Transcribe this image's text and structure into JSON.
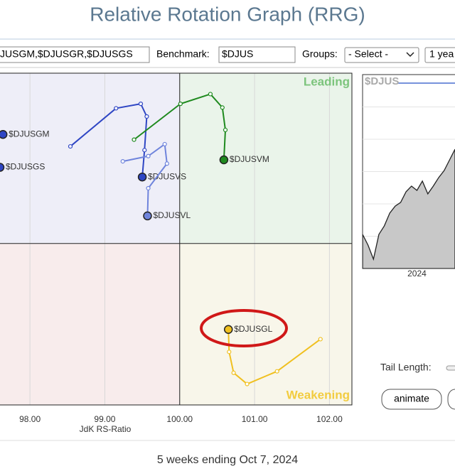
{
  "header": {
    "title": "Relative Rotation Graph (RRG)"
  },
  "controls": {
    "symbols": "JUSGM,$DJUSGR,$DJUSGS",
    "benchmark_label": "Benchmark:",
    "benchmark": "$DJUS",
    "groups_label": "Groups:",
    "groups": "- Select -",
    "period": "1 yea",
    "tail_label": "Tail Length:",
    "animate": "animate"
  },
  "footer": "5 weeks ending Oct 7, 2024",
  "chart_data": [
    {
      "type": "rrg",
      "xlabel": "JdK RS-Ratio",
      "xlim": [
        97.6,
        102.3
      ],
      "ylim": [
        97.84,
        102.28
      ],
      "center": 100,
      "xticks": [
        {
          "value": 98,
          "label": "98.00"
        },
        {
          "value": 99,
          "label": "99.00"
        },
        {
          "value": 100,
          "label": "100.00"
        },
        {
          "value": 101,
          "label": "101.00"
        },
        {
          "value": 102,
          "label": "102.00"
        }
      ],
      "quadrants": {
        "leading": "Leading",
        "weakening": "Weakening"
      },
      "series": [
        {
          "name": "$DJUSGM",
          "color": "#2f46c4",
          "x": [
            97.64
          ],
          "y": [
            101.46
          ]
        },
        {
          "name": "$DJUSGS",
          "color": "#2f46c4",
          "x": [
            97.6
          ],
          "y": [
            101.02
          ]
        },
        {
          "name": "$DJUSVS",
          "color": "#2f46c4",
          "x": [
            98.54,
            99.15,
            99.48,
            99.56,
            99.53,
            99.5
          ],
          "y": [
            101.3,
            101.81,
            101.87,
            101.7,
            101.25,
            100.89
          ]
        },
        {
          "name": "$DJUSVL",
          "color": "#6f84dc",
          "x": [
            99.24,
            99.58,
            99.8,
            99.83,
            99.58,
            99.57
          ],
          "y": [
            101.1,
            101.17,
            101.33,
            101.07,
            100.74,
            100.37
          ]
        },
        {
          "name": "$DJUSVM",
          "color": "#1f8a1f",
          "x": [
            99.39,
            100.01,
            100.41,
            100.57,
            100.61,
            100.59
          ],
          "y": [
            101.39,
            101.87,
            102.0,
            101.82,
            101.52,
            101.12
          ]
        },
        {
          "name": "$DJUSGL",
          "color": "#f0c020",
          "x": [
            101.88,
            101.3,
            100.9,
            100.72,
            100.66,
            100.65
          ],
          "y": [
            98.72,
            98.29,
            98.12,
            98.27,
            98.55,
            98.85
          ]
        }
      ]
    },
    {
      "type": "area",
      "title": "$DJUS",
      "color": "#c8c8c8",
      "ylim": [
        0,
        100
      ],
      "categories": [
        null,
        null,
        null,
        null,
        null,
        null,
        null,
        null,
        null,
        null,
        "2024",
        null,
        null,
        null,
        null,
        null,
        null,
        null
      ],
      "values": [
        17.6,
        12.1,
        4.8,
        17.6,
        22,
        28.6,
        32.2,
        34.1,
        39.6,
        42.5,
        40.3,
        45.1,
        38.5,
        42.5,
        46.9,
        50.5,
        56,
        61.5
      ]
    }
  ]
}
